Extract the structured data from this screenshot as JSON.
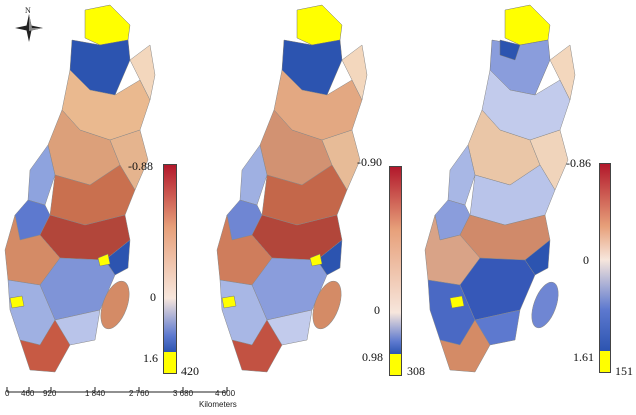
{
  "north_label": "N",
  "maps": [
    {
      "legend": {
        "top": "-0.88",
        "zero": "0",
        "bottom": "1.6",
        "count": "420"
      },
      "palette": {
        "high": "#b2182b",
        "mid": "#f7e6dc",
        "low": "#2c54b0",
        "special": "#ffff00"
      }
    },
    {
      "legend": {
        "top": "-0.90",
        "zero": "0",
        "bottom": "0.98",
        "count": "308"
      },
      "palette": {
        "high": "#b2182b",
        "mid": "#f7e6dc",
        "low": "#2c54b0",
        "special": "#ffff00"
      }
    },
    {
      "legend": {
        "top": "-0.86",
        "zero": "0",
        "bottom": "1.61",
        "count": "151"
      },
      "palette": {
        "high": "#b2182b",
        "mid": "#f7e6dc",
        "low": "#2c54b0",
        "special": "#ffff00"
      }
    }
  ],
  "scale": {
    "ticks": [
      "0",
      "460",
      "920",
      "1 840",
      "2 760",
      "3 680",
      "4 600"
    ],
    "unit": "Kilometers"
  }
}
